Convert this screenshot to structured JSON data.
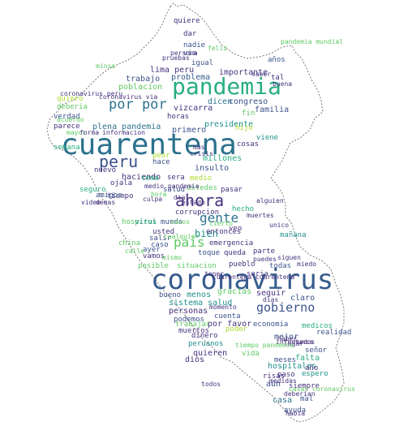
{
  "palette": {
    "dark_purple": "#46327e",
    "indigo": "#3b528b",
    "blue": "#365c8d",
    "teal_blue": "#2c728e",
    "teal": "#21918c",
    "green": "#28ae80",
    "light_green": "#5ec962",
    "lime": "#addc30",
    "yellow": "#d8e219"
  },
  "words": [
    {
      "text": "cuarentena",
      "color": "#2c728e"
    },
    {
      "text": "coronavirus",
      "color": "#365c8d"
    },
    {
      "text": "pandemia",
      "color": "#28ae80"
    },
    {
      "text": "peru",
      "color": "#3b528b"
    },
    {
      "text": "ahora",
      "color": "#46327e"
    },
    {
      "text": "gente",
      "color": "#2c728e"
    },
    {
      "text": "por por",
      "color": "#2c728e"
    },
    {
      "text": "pais",
      "color": "#5ec962"
    },
    {
      "text": "gobierno",
      "color": "#3b528b"
    },
    {
      "text": "bien",
      "color": "#21918c"
    },
    {
      "text": "vizcarra",
      "color": "#46327e"
    },
    {
      "text": "dicen",
      "color": "#2c728e"
    },
    {
      "text": "congreso",
      "color": "#3b528b"
    },
    {
      "text": "presidente",
      "color": "#21918c"
    },
    {
      "text": "familia",
      "color": "#3b528b"
    },
    {
      "text": "lima peru",
      "color": "#46327e"
    },
    {
      "text": "problema",
      "color": "#365c8d"
    },
    {
      "text": "trabajo",
      "color": "#3b528b"
    },
    {
      "text": "poblacion",
      "color": "#5ec962"
    },
    {
      "text": "importante",
      "color": "#46327e"
    },
    {
      "text": "plena pandemia",
      "color": "#2c728e"
    },
    {
      "text": "primero",
      "color": "#3b528b"
    },
    {
      "text": "millones",
      "color": "#28ae80"
    },
    {
      "text": "haciendo",
      "color": "#46327e"
    },
    {
      "text": "insulto",
      "color": "#3b528b"
    },
    {
      "text": "nuevo",
      "color": "#46327e"
    },
    {
      "text": "ojala",
      "color": "#46327e"
    },
    {
      "text": "sera",
      "color": "#46327e"
    },
    {
      "text": "tema",
      "color": "#28ae80"
    },
    {
      "text": "medio",
      "color": "#addc30"
    },
    {
      "text": "salud",
      "color": "#3b528b"
    },
    {
      "text": "ustedes",
      "color": "#5ec962"
    },
    {
      "text": "tiempo",
      "color": "#46327e"
    },
    {
      "text": "amigos",
      "color": "#3b528b"
    },
    {
      "text": "corrupcion",
      "color": "#46327e"
    },
    {
      "text": "mundo",
      "color": "#3b528b"
    },
    {
      "text": "hecho",
      "color": "#28ae80"
    },
    {
      "text": "usted",
      "color": "#46327e"
    },
    {
      "text": "entonces",
      "color": "#46327e"
    },
    {
      "text": "salir",
      "color": "#3b528b"
    },
    {
      "text": "caso",
      "color": "#3b528b"
    },
    {
      "text": "emergencia",
      "color": "#46327e"
    },
    {
      "text": "toque",
      "color": "#3b528b"
    },
    {
      "text": "queda",
      "color": "#46327e"
    },
    {
      "text": "parte",
      "color": "#46327e"
    },
    {
      "text": "mañana",
      "color": "#21918c"
    },
    {
      "text": "parece",
      "color": "#46327e"
    },
    {
      "text": "verdad",
      "color": "#3b528b"
    },
    {
      "text": "nadie",
      "color": "#3b528b"
    },
    {
      "text": "quiere",
      "color": "#46327e"
    },
    {
      "text": "dar",
      "color": "#46327e"
    },
    {
      "text": "ayer",
      "color": "#3b528b"
    },
    {
      "text": "china",
      "color": "#5ec962"
    },
    {
      "text": "pueblo",
      "color": "#46327e"
    },
    {
      "text": "todas",
      "color": "#3b528b"
    },
    {
      "text": "situacion",
      "color": "#5ec962"
    },
    {
      "text": "posible",
      "color": "#5ec962"
    },
    {
      "text": "menos",
      "color": "#21918c"
    },
    {
      "text": "bueno",
      "color": "#3b528b"
    },
    {
      "text": "gracias",
      "color": "#5ec962"
    },
    {
      "text": "seguir",
      "color": "#46327e"
    },
    {
      "text": "claro",
      "color": "#3b528b"
    },
    {
      "text": "sistema salud",
      "color": "#21918c"
    },
    {
      "text": "personas",
      "color": "#46327e"
    },
    {
      "text": "cuenta",
      "color": "#3b528b"
    },
    {
      "text": "por favor",
      "color": "#46327e"
    },
    {
      "text": "economia",
      "color": "#3b528b"
    },
    {
      "text": "mejor",
      "color": "#3b528b"
    },
    {
      "text": "dinero",
      "color": "#46327e"
    },
    {
      "text": "peruanos",
      "color": "#21918c"
    },
    {
      "text": "quieren",
      "color": "#46327e"
    },
    {
      "text": "dios",
      "color": "#46327e"
    },
    {
      "text": "vida",
      "color": "#5ec962"
    },
    {
      "text": "falta",
      "color": "#28ae80"
    },
    {
      "text": "señor",
      "color": "#3b528b"
    },
    {
      "text": "meses",
      "color": "#3b528b"
    },
    {
      "text": "hospitales",
      "color": "#21918c"
    },
    {
      "text": "paso",
      "color": "#46327e"
    },
    {
      "text": "risas",
      "color": "#46327e"
    },
    {
      "text": "espero",
      "color": "#21918c"
    },
    {
      "text": "año",
      "color": "#46327e"
    },
    {
      "text": "aun",
      "color": "#3b528b"
    },
    {
      "text": "siempre",
      "color": "#46327e"
    },
    {
      "text": "casa",
      "color": "#2c728e"
    },
    {
      "text": "mal",
      "color": "#3b528b"
    },
    {
      "text": "ayuda",
      "color": "#3b528b"
    },
    {
      "text": "trabajar",
      "color": "#5ec962"
    },
    {
      "text": "muertos",
      "color": "#46327e"
    },
    {
      "text": "podemos",
      "color": "#3b528b"
    },
    {
      "text": "medicos",
      "color": "#28ae80"
    },
    {
      "text": "realidad",
      "color": "#3b528b"
    },
    {
      "text": "hospital",
      "color": "#5ec962"
    },
    {
      "text": "seguro",
      "color": "#28ae80"
    },
    {
      "text": "vamos",
      "color": "#46327e"
    },
    {
      "text": "semana",
      "color": "#28ae80"
    },
    {
      "text": "quiero",
      "color": "#addc30"
    },
    {
      "text": "deberia",
      "color": "#5ec962"
    },
    {
      "text": "coronavirus peru",
      "color": "#46327e"
    },
    {
      "text": "igual",
      "color": "#3b528b"
    },
    {
      "text": "tal",
      "color": "#46327e"
    },
    {
      "text": "años",
      "color": "#3b528b"
    },
    {
      "text": "via",
      "color": "#3b528b"
    },
    {
      "text": "persona",
      "color": "#46327e"
    },
    {
      "text": "fin",
      "color": "#5ec962"
    },
    {
      "text": "viene",
      "color": "#21918c"
    },
    {
      "text": "hijo",
      "color": "#addc30"
    },
    {
      "text": "horas",
      "color": "#46327e"
    },
    {
      "text": "veo",
      "color": "#46327e"
    },
    {
      "text": "virus",
      "color": "#21918c"
    },
    {
      "text": "poder",
      "color": "#addc30"
    },
    {
      "text": "momento",
      "color": "#46327e"
    },
    {
      "text": "seria",
      "color": "#46327e"
    },
    {
      "text": "mayor",
      "color": "#5ec962"
    },
    {
      "text": "forma",
      "color": "#46327e"
    },
    {
      "text": "informacion",
      "color": "#46327e"
    },
    {
      "text": "cosas",
      "color": "#46327e"
    },
    {
      "text": "pasar",
      "color": "#46327e"
    },
    {
      "text": "dia",
      "color": "#46327e"
    },
    {
      "text": "hace",
      "color": "#3b528b"
    },
    {
      "text": "peor",
      "color": "#addc30"
    },
    {
      "text": "demas",
      "color": "#46327e"
    },
    {
      "text": "video",
      "color": "#46327e"
    },
    {
      "text": "cuarentena cuarentena",
      "color": "#46327e"
    },
    {
      "text": "coronavirus via",
      "color": "#46327e"
    },
    {
      "text": "saber",
      "color": "#46327e"
    },
    {
      "text": "buena",
      "color": "#46327e"
    },
    {
      "text": "feliz",
      "color": "#5ec962"
    },
    {
      "text": "pruebas",
      "color": "#46327e"
    },
    {
      "text": "habia",
      "color": "#46327e"
    },
    {
      "text": "infectados",
      "color": "#46327e"
    },
    {
      "text": "estado",
      "color": "#46327e"
    },
    {
      "text": "cierto",
      "color": "#5ec962"
    },
    {
      "text": "muertes",
      "color": "#46327e"
    },
    {
      "text": "cualquier",
      "color": "#5ec962"
    },
    {
      "text": "mismo",
      "color": "#5ec962"
    },
    {
      "text": "casos",
      "color": "#5ec962"
    },
    {
      "text": "unico",
      "color": "#46327e"
    },
    {
      "text": "miedo",
      "color": "#46327e"
    },
    {
      "text": "acuerdo",
      "color": "#5ec962"
    },
    {
      "text": "haber",
      "color": "#46327e"
    },
    {
      "text": "lugar",
      "color": "#46327e"
    },
    {
      "text": "calle",
      "color": "#5ec962"
    },
    {
      "text": "culpa",
      "color": "#46327e"
    },
    {
      "text": "tener",
      "color": "#46327e"
    },
    {
      "text": "medidas",
      "color": "#46327e"
    },
    {
      "text": "puedes",
      "color": "#46327e"
    },
    {
      "text": "alguien",
      "color": "#46327e"
    },
    {
      "text": "hora",
      "color": "#5ec962"
    },
    {
      "text": "todos",
      "color": "#46327e"
    },
    {
      "text": "pandemia mundial",
      "color": "#5ec962"
    },
    {
      "text": "casas coronavirus",
      "color": "#5ec962"
    },
    {
      "text": "medio pandemia",
      "color": "#46327e"
    },
    {
      "text": "deberian",
      "color": "#46327e"
    },
    {
      "text": "siguen",
      "color": "#46327e"
    },
    {
      "text": "dias",
      "color": "#46327e"
    },
    {
      "text": "nunca",
      "color": "#46327e"
    },
    {
      "text": "crisis",
      "color": "#46327e"
    },
    {
      "text": "mas",
      "color": "#46327e"
    },
    {
      "text": "minsa",
      "color": "#5ec962"
    },
    {
      "text": "tiempo pandemia",
      "color": "#5ec962"
    }
  ]
}
